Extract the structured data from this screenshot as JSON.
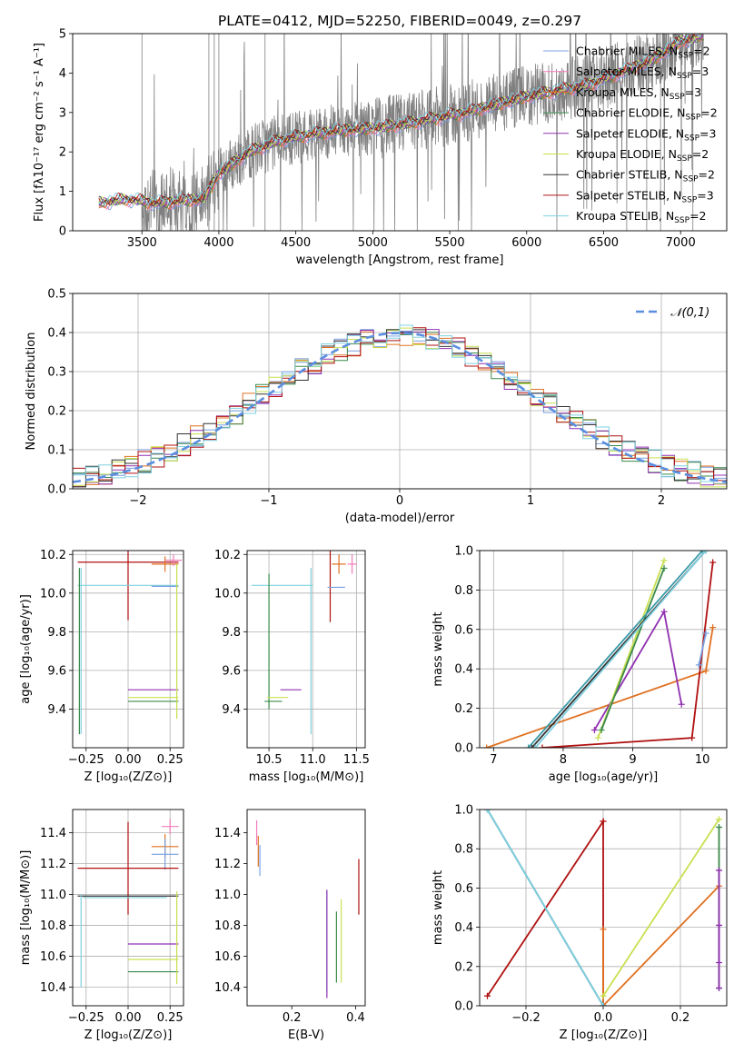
{
  "chart_data": [
    {
      "id": "spectrum",
      "type": "line",
      "title": "PLATE=0412, MJD=52250, FIBERID=0049, z=0.297",
      "xlabel": "wavelength [Angstrom, rest frame]",
      "ylabel": "Flux [fλ10⁻¹⁷ erg cm⁻² s⁻¹ A⁻¹]",
      "xlim": [
        3050,
        7300
      ],
      "ylim": [
        0,
        5
      ],
      "xticks": [
        3500,
        4000,
        4500,
        5000,
        5500,
        6000,
        6500,
        7000
      ],
      "yticks": [
        0,
        1,
        2,
        3,
        4,
        5
      ],
      "data_series": {
        "name": "",
        "color": "#808080",
        "x_range": [
          3220,
          7150
        ]
      },
      "model_continuum": {
        "x": [
          3220,
          3400,
          3600,
          3800,
          3900,
          4000,
          4200,
          4400,
          4600,
          4800,
          5000,
          5200,
          5400,
          5600,
          5800,
          6000,
          6200,
          6400,
          6600,
          6800,
          7000,
          7150
        ],
        "y": [
          0.7,
          0.8,
          0.7,
          0.78,
          0.8,
          1.45,
          2.0,
          2.3,
          2.45,
          2.55,
          2.6,
          2.7,
          2.85,
          3.0,
          3.2,
          3.4,
          3.55,
          3.7,
          4.0,
          4.3,
          4.8,
          4.95
        ]
      },
      "legend": [
        {
          "name": "Chabrier MILES, N_SSP=2",
          "label": "Chabrier MILES, N",
          "sub": "SSP",
          "tail": "=2",
          "color": "#7aa0e0"
        },
        {
          "name": "Salpeter MILES, N_SSP=3",
          "label": "Salpeter MILES, N",
          "sub": "SSP",
          "tail": "=3",
          "color": "#f07cb8"
        },
        {
          "name": "Kroupa MILES, N_SSP=3",
          "label": "Kroupa MILES, N",
          "sub": "SSP",
          "tail": "=3",
          "color": "#e07020"
        },
        {
          "name": "Chabrier ELODIE, N_SSP=2",
          "label": "Chabrier ELODIE, N",
          "sub": "SSP",
          "tail": "=2",
          "color": "#3a8a4a"
        },
        {
          "name": "Salpeter ELODIE, N_SSP=3",
          "label": "Salpeter ELODIE, N",
          "sub": "SSP",
          "tail": "=3",
          "color": "#9030b0"
        },
        {
          "name": "Kroupa ELODIE, N_SSP=2",
          "label": "Kroupa ELODIE, N",
          "sub": "SSP",
          "tail": "=2",
          "color": "#c8e050"
        },
        {
          "name": "Chabrier STELIB, N_SSP=2",
          "label": "Chabrier STELIB, N",
          "sub": "SSP",
          "tail": "=2",
          "color": "#333333"
        },
        {
          "name": "Salpeter STELIB, N_SSP=3",
          "label": "Salpeter STELIB, N",
          "sub": "SSP",
          "tail": "=3",
          "color": "#b01010"
        },
        {
          "name": "Kroupa STELIB, N_SSP=2",
          "label": "Kroupa STELIB, N",
          "sub": "SSP",
          "tail": "=2",
          "color": "#80d0e0"
        }
      ]
    },
    {
      "id": "residuals",
      "type": "line",
      "xlabel": "(data-model)/error",
      "ylabel": "Normed distribution",
      "xlim": [
        -2.5,
        2.5
      ],
      "ylim": [
        0,
        0.5
      ],
      "xticks": [
        -2,
        -1,
        0,
        1,
        2
      ],
      "yticks": [
        0.0,
        0.1,
        0.2,
        0.3,
        0.4,
        0.5
      ],
      "grid": true,
      "legend_placement": "top-right",
      "reference_curve": {
        "name": "𝒩(0,1)",
        "color": "#5a8ee0",
        "dashed": true,
        "mean": 0,
        "sigma": 1
      },
      "histogram_colors": [
        "#7aa0e0",
        "#e07020",
        "#3a8a4a",
        "#9030b0",
        "#c8e050",
        "#333333",
        "#b01010",
        "#80d0e0"
      ],
      "bin_width": 0.1
    },
    {
      "id": "age-vs-Z",
      "type": "scatter",
      "xlabel": "Z [log₁₀(Z/Z⊙)]",
      "ylabel": "age  [log₁₀(age/yr)]",
      "xlim": [
        -0.33,
        0.33
      ],
      "ylim": [
        9.2,
        10.22
      ],
      "xticks": [
        -0.25,
        0.0,
        0.25
      ],
      "yticks": [
        9.4,
        9.6,
        9.8,
        10.0,
        10.2
      ],
      "grid": true,
      "points": [
        {
          "x": 0.0,
          "y": 10.16,
          "xerr": 0.3,
          "yerr": 0.3,
          "color": "#b01010"
        },
        {
          "x": 0.22,
          "y": 10.15,
          "xerr": 0.08,
          "yerr": 0.04,
          "color": "#e07020"
        },
        {
          "x": 0.27,
          "y": 10.17,
          "xerr": 0.05,
          "yerr": 0.03,
          "color": "#f07cb8"
        },
        {
          "x": 0.0,
          "y": 10.04,
          "xerr": 0.3,
          "yerr": 0.0,
          "color": "#80d0e0"
        },
        {
          "x": 0.22,
          "y": 10.035,
          "xerr": 0.08,
          "yerr": 0.0,
          "color": "#7aa0e0"
        },
        {
          "x": -0.29,
          "y": 9.7,
          "xerr": 0.0,
          "yerr": 0.43,
          "color": "#3a8a4a"
        },
        {
          "x": -0.28,
          "y": 9.7,
          "xerr": 0.0,
          "yerr": 0.43,
          "color": "#80d0e0"
        },
        {
          "x": 0.15,
          "y": 9.5,
          "xerr": 0.15,
          "yerr": 0.0,
          "color": "#9030b0"
        },
        {
          "x": 0.15,
          "y": 9.46,
          "xerr": 0.15,
          "yerr": 0.0,
          "color": "#c8e050"
        },
        {
          "x": 0.15,
          "y": 9.44,
          "xerr": 0.15,
          "yerr": 0.0,
          "color": "#3a8a4a"
        },
        {
          "x": 0.29,
          "y": 9.75,
          "xerr": 0.0,
          "yerr": 0.4,
          "color": "#c8e050"
        }
      ]
    },
    {
      "id": "age-vs-mass",
      "type": "scatter",
      "xlabel": "mass [log₁₀(M/M⊙)]",
      "ylabel": "",
      "xlim": [
        10.25,
        11.6
      ],
      "ylim": [
        9.2,
        10.22
      ],
      "xticks": [
        10.5,
        11.0,
        11.5
      ],
      "yticks": [
        9.4,
        9.6,
        9.8,
        10.0,
        10.2
      ],
      "grid": true,
      "points": [
        {
          "x": 11.2,
          "y": 10.15,
          "xerr": 0.0,
          "yerr": 0.3,
          "color": "#b01010"
        },
        {
          "x": 11.3,
          "y": 10.15,
          "xerr": 0.08,
          "yerr": 0.05,
          "color": "#e07020"
        },
        {
          "x": 11.45,
          "y": 10.15,
          "xerr": 0.05,
          "yerr": 0.05,
          "color": "#f07cb8"
        },
        {
          "x": 10.65,
          "y": 10.04,
          "xerr": 0.35,
          "yerr": 0.0,
          "color": "#80d0e0"
        },
        {
          "x": 11.27,
          "y": 10.03,
          "xerr": 0.1,
          "yerr": 0.0,
          "color": "#7aa0e0"
        },
        {
          "x": 10.98,
          "y": 9.7,
          "xerr": 0.0,
          "yerr": 0.43,
          "color": "#80d0e0"
        },
        {
          "x": 10.5,
          "y": 9.75,
          "xerr": 0.0,
          "yerr": 0.35,
          "color": "#3a8a4a"
        },
        {
          "x": 10.75,
          "y": 9.5,
          "xerr": 0.12,
          "yerr": 0.0,
          "color": "#9030b0"
        },
        {
          "x": 10.6,
          "y": 9.46,
          "xerr": 0.12,
          "yerr": 0.0,
          "color": "#c8e050"
        },
        {
          "x": 10.55,
          "y": 9.44,
          "xerr": 0.1,
          "yerr": 0.0,
          "color": "#3a8a4a"
        }
      ]
    },
    {
      "id": "weight-vs-age",
      "type": "line",
      "xlabel": "age  [log₁₀(age/yr)]",
      "ylabel": "mass weight",
      "xlim": [
        6.8,
        10.35
      ],
      "ylim": [
        0,
        1
      ],
      "xticks": [
        7,
        8,
        9,
        10
      ],
      "yticks": [
        0.0,
        0.2,
        0.4,
        0.6,
        0.8,
        1.0
      ],
      "grid": true,
      "series": [
        {
          "color": "#e07020",
          "x": [
            6.9,
            10.05,
            10.15
          ],
          "y": [
            0.0,
            0.39,
            0.61
          ]
        },
        {
          "color": "#b01010",
          "x": [
            7.7,
            9.85,
            10.15
          ],
          "y": [
            0.0,
            0.05,
            0.94
          ]
        },
        {
          "color": "#9030b0",
          "x": [
            8.45,
            9.45,
            9.7
          ],
          "y": [
            0.09,
            0.69,
            0.22
          ]
        },
        {
          "color": "#c8e050",
          "x": [
            8.5,
            9.45
          ],
          "y": [
            0.05,
            0.95
          ]
        },
        {
          "color": "#3a8a4a",
          "x": [
            8.55,
            9.45
          ],
          "y": [
            0.09,
            0.91
          ]
        },
        {
          "color": "#7aa0e0",
          "x": [
            9.95,
            10.05
          ],
          "y": [
            0.42,
            0.58
          ]
        },
        {
          "color": "#333333",
          "x": [
            7.55,
            10.05
          ],
          "y": [
            0.0,
            1.0
          ]
        },
        {
          "color": "#3a9aa8",
          "x": [
            7.5,
            10.0
          ],
          "y": [
            0.0,
            1.0
          ]
        },
        {
          "color": "#80d0e0",
          "x": [
            7.6,
            10.05
          ],
          "y": [
            0.0,
            1.0
          ]
        }
      ]
    },
    {
      "id": "mass-vs-Z",
      "type": "scatter",
      "xlabel": "Z [log₁₀(Z/Z⊙)]",
      "ylabel": "mass [log₁₀(M/M⊙)]",
      "xlim": [
        -0.33,
        0.33
      ],
      "ylim": [
        10.28,
        11.55
      ],
      "xticks": [
        -0.25,
        0.0,
        0.25
      ],
      "yticks": [
        10.4,
        10.6,
        10.8,
        11.0,
        11.2,
        11.4
      ],
      "grid": true,
      "points": [
        {
          "x": 0.25,
          "y": 11.44,
          "xerr": 0.05,
          "yerr": 0.05,
          "color": "#f07cb8"
        },
        {
          "x": 0.22,
          "y": 11.31,
          "xerr": 0.08,
          "yerr": 0.08,
          "color": "#e07020"
        },
        {
          "x": 0.22,
          "y": 11.26,
          "xerr": 0.08,
          "yerr": 0.1,
          "color": "#7aa0e0"
        },
        {
          "x": 0.0,
          "y": 11.17,
          "xerr": 0.3,
          "yerr": 0.3,
          "color": "#b01010"
        },
        {
          "x": 0.0,
          "y": 10.99,
          "xerr": 0.3,
          "yerr": 0.0,
          "color": "#333333"
        },
        {
          "x": -0.02,
          "y": 10.98,
          "xerr": 0.25,
          "yerr": 0.0,
          "color": "#80d0e0"
        },
        {
          "x": -0.28,
          "y": 10.7,
          "xerr": 0.0,
          "yerr": 0.3,
          "color": "#80d0e0"
        },
        {
          "x": 0.15,
          "y": 10.68,
          "xerr": 0.15,
          "yerr": 0.0,
          "color": "#9030b0"
        },
        {
          "x": 0.15,
          "y": 10.58,
          "xerr": 0.15,
          "yerr": 0.0,
          "color": "#c8e050"
        },
        {
          "x": 0.15,
          "y": 10.5,
          "xerr": 0.15,
          "yerr": 0.0,
          "color": "#3a8a4a"
        },
        {
          "x": 0.29,
          "y": 10.72,
          "xerr": 0.0,
          "yerr": 0.3,
          "color": "#c8e050"
        }
      ]
    },
    {
      "id": "mass-vs-EBV",
      "type": "scatter",
      "xlabel": "E(B-V)",
      "ylabel": "",
      "xlim": [
        0.06,
        0.43
      ],
      "ylim": [
        10.28,
        11.55
      ],
      "xticks": [
        0.2,
        0.4
      ],
      "yticks": [
        10.4,
        10.6,
        10.8,
        11.0,
        11.2,
        11.4
      ],
      "grid": false,
      "points": [
        {
          "x": 0.09,
          "y": 11.4,
          "xerr": 0.0,
          "yerr": 0.08,
          "color": "#f07cb8"
        },
        {
          "x": 0.095,
          "y": 11.28,
          "xerr": 0.0,
          "yerr": 0.1,
          "color": "#e07020"
        },
        {
          "x": 0.1,
          "y": 11.22,
          "xerr": 0.0,
          "yerr": 0.1,
          "color": "#7aa0e0"
        },
        {
          "x": 0.41,
          "y": 11.05,
          "xerr": 0.0,
          "yerr": 0.18,
          "color": "#b01010"
        },
        {
          "x": 0.31,
          "y": 10.7,
          "xerr": 0.0,
          "yerr": 0.33,
          "color": "#80d0e0"
        },
        {
          "x": 0.31,
          "y": 10.68,
          "xerr": 0.0,
          "yerr": 0.35,
          "color": "#9030b0"
        },
        {
          "x": 0.34,
          "y": 10.66,
          "xerr": 0.0,
          "yerr": 0.23,
          "color": "#3a8a4a"
        },
        {
          "x": 0.355,
          "y": 10.7,
          "xerr": 0.0,
          "yerr": 0.27,
          "color": "#c8e050"
        }
      ]
    },
    {
      "id": "weight-vs-Z",
      "type": "line",
      "xlabel": "Z [log₁₀(Z/Z⊙)]",
      "ylabel": "mass weight",
      "xlim": [
        -0.32,
        0.32
      ],
      "ylim": [
        0,
        1
      ],
      "xticks": [
        -0.2,
        0.0,
        0.2
      ],
      "yticks": [
        0.0,
        0.2,
        0.4,
        0.6,
        0.8,
        1.0
      ],
      "grid": true,
      "series": [
        {
          "color": "#b01010",
          "x": [
            -0.3,
            0.0,
            0.0
          ],
          "y": [
            0.05,
            0.94,
            0.0
          ]
        },
        {
          "color": "#e07020",
          "x": [
            0.0,
            0.0,
            0.3
          ],
          "y": [
            0.39,
            0.0,
            0.61
          ]
        },
        {
          "color": "#c8e050",
          "x": [
            0.0,
            0.3
          ],
          "y": [
            0.05,
            0.95
          ]
        },
        {
          "color": "#3a8a4a",
          "x": [
            0.3,
            0.3
          ],
          "y": [
            0.09,
            0.91
          ]
        },
        {
          "color": "#9030b0",
          "x": [
            0.3,
            0.3
          ],
          "y": [
            0.09,
            0.69
          ]
        },
        {
          "color": "#9030b0",
          "x": [
            0.3,
            0.3
          ],
          "y": [
            0.22,
            0.41
          ]
        },
        {
          "color": "#333333",
          "x": [
            -0.3,
            0.0
          ],
          "y": [
            1.0,
            0.0
          ]
        },
        {
          "color": "#3a9aa8",
          "x": [
            -0.3,
            0.0
          ],
          "y": [
            1.0,
            0.0
          ]
        },
        {
          "color": "#80d0e0",
          "x": [
            -0.3,
            0.0
          ],
          "y": [
            1.0,
            0.0
          ]
        }
      ]
    }
  ]
}
